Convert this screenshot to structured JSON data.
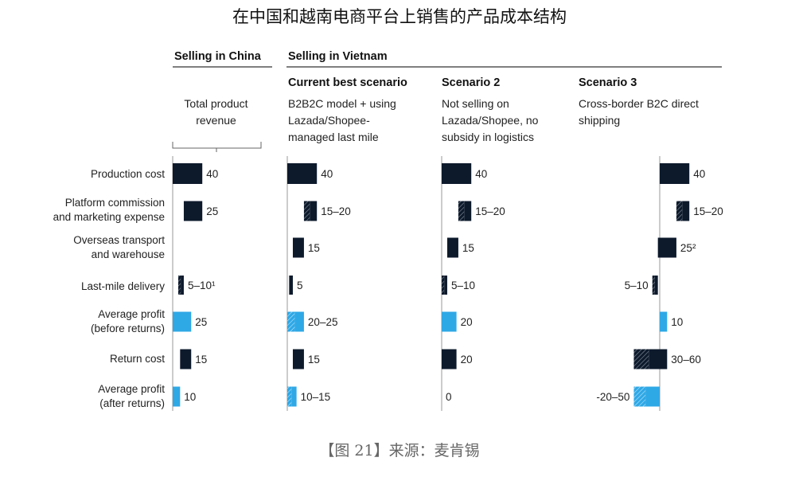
{
  "title": "在中国和越南电商平台上销售的产品成本结构",
  "caption": "【图 21】来源：麦肯锡",
  "header": {
    "china": "Selling in China",
    "vietnam": "Selling in Vietnam"
  },
  "colors": {
    "dark": "#0d1a2c",
    "blue": "#2fa8e6",
    "rule": "#555555"
  },
  "chart_data": {
    "type": "waterfall",
    "row_labels": [
      "Production cost",
      "Platform commission\nand marketing expense",
      "Overseas transport\nand warehouse",
      "Last-mile delivery",
      "Average profit\n(before returns)",
      "Return cost",
      "Average profit\n(after returns)"
    ],
    "panels": [
      {
        "name": "Selling in China",
        "description": "Total product\nrevenue",
        "labels": [
          "40",
          "25",
          "",
          "5–10¹",
          "25",
          "15",
          "10"
        ],
        "values": [
          40,
          25,
          0,
          7.5,
          25,
          15,
          10
        ]
      },
      {
        "name": "Current best scenario",
        "description": "B2B2C model + using\nLazada/Shopee-\nmanaged last mile",
        "labels": [
          "40",
          "15–20",
          "15",
          "5",
          "20–25",
          "15",
          "10–15"
        ],
        "values": [
          40,
          17.5,
          15,
          5,
          22.5,
          15,
          12.5
        ]
      },
      {
        "name": "Scenario 2",
        "description": "Not selling on\nLazada/Shopee, no\nsubsidy in logistics",
        "labels": [
          "40",
          "15–20",
          "15",
          "5–10",
          "20",
          "20",
          "0"
        ],
        "values": [
          40,
          17.5,
          15,
          7.5,
          20,
          20,
          0
        ]
      },
      {
        "name": "Scenario 3",
        "description": "Cross-border B2C direct\nshipping",
        "labels": [
          "40",
          "15–20",
          "25²",
          "5–10",
          "10",
          "30–60",
          "-20–50"
        ],
        "values": [
          40,
          17.5,
          25,
          7.5,
          10,
          45,
          -35
        ]
      }
    ]
  }
}
